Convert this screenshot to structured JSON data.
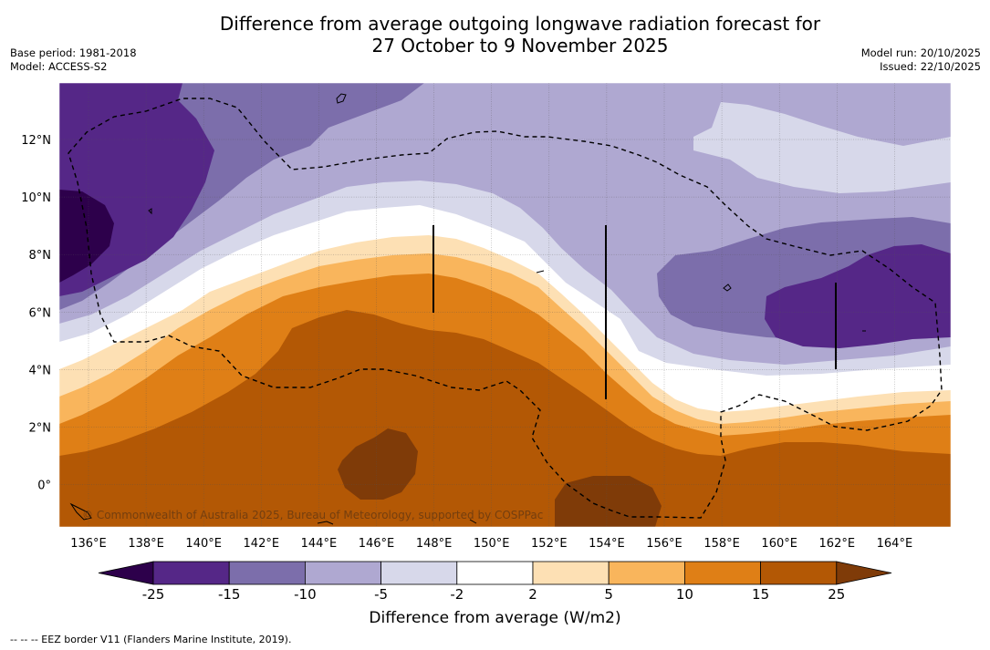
{
  "title_line1": "Difference from average outgoing longwave radiation forecast for",
  "title_line2": "27 October to 9 November 2025",
  "base_period": "Base period: 1981-2018",
  "model": "Model: ACCESS-S2",
  "model_run": "Model run: 20/10/2025",
  "issued": "Issued: 22/10/2025",
  "copyright": "© Commonwealth of Australia 2025, Bureau of Meteorology, supported by COSPPac",
  "legend_title": "Difference from average (W/m2)",
  "footnote": "--  --  -- EEZ border V11 (Flanders Marine Institute, 2019).",
  "lat_labels": [
    "12°N",
    "10°N",
    "8°N",
    "6°N",
    "4°N",
    "2°N",
    "0°"
  ],
  "lon_labels": [
    "136°E",
    "138°E",
    "140°E",
    "142°E",
    "144°E",
    "146°E",
    "148°E",
    "150°E",
    "152°E",
    "154°E",
    "156°E",
    "158°E",
    "160°E",
    "162°E",
    "164°E"
  ],
  "colorbar": {
    "ticks": [
      "-25",
      "-15",
      "-10",
      "-5",
      "-2",
      "2",
      "5",
      "10",
      "15",
      "25"
    ],
    "colors": [
      "#552787",
      "#7c6eab",
      "#afa8d1",
      "#d7d8ea",
      "#ffffff",
      "#fde0b4",
      "#f9b55c",
      "#df7f16",
      "#b35805"
    ],
    "under_color": "#2d004b",
    "over_color": "#7f3b08"
  },
  "palette": {
    "d5": "#2d004b",
    "d4": "#552787",
    "d3": "#7c6eab",
    "d2": "#afa8d1",
    "d1": "#d7d8ea",
    "n": "#ffffff",
    "w1": "#fde0b4",
    "w2": "#f9b55c",
    "w3": "#df7f16",
    "w4": "#b35805",
    "w5": "#7f3b08"
  }
}
